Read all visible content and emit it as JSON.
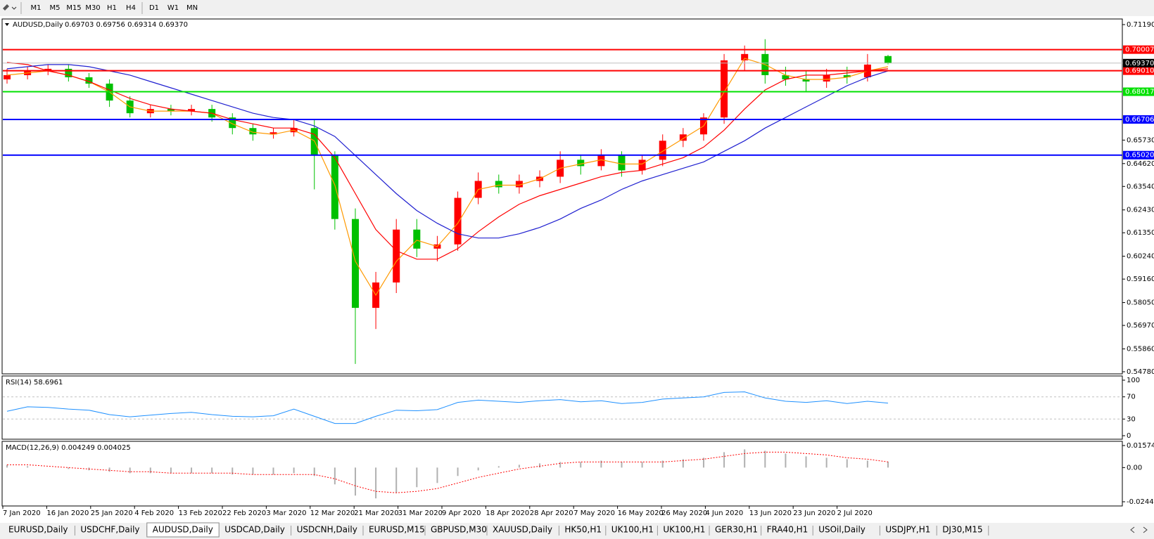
{
  "toolbar": {
    "timeframes": [
      "M1",
      "M5",
      "M15",
      "M30",
      "H1",
      "H4",
      "D1",
      "W1",
      "MN"
    ]
  },
  "chart_data": {
    "type": "candlestick",
    "title": "AUDUSD,Daily",
    "quote": "0.69703 0.69756 0.69314 0.69370",
    "bull_color": "#ff0000",
    "bear_color": "#00c000",
    "x_labels": [
      "7 Jan 2020",
      "16 Jan 2020",
      "25 Jan 2020",
      "4 Feb 2020",
      "13 Feb 2020",
      "22 Feb 2020",
      "3 Mar 2020",
      "12 Mar 2020",
      "21 Mar 2020",
      "31 Mar 2020",
      "9 Apr 2020",
      "18 Apr 2020",
      "28 Apr 2020",
      "7 May 2020",
      "16 May 2020",
      "26 May 2020",
      "4 Jun 2020",
      "13 Jun 2020",
      "23 Jun 2020",
      "2 Jul 2020"
    ],
    "open": [
      0.686,
      0.688,
      0.69,
      0.691,
      0.687,
      0.684,
      0.676,
      0.67,
      0.672,
      0.671,
      0.672,
      0.668,
      0.663,
      0.66,
      0.661,
      0.663,
      0.65,
      0.62,
      0.578,
      0.59,
      0.615,
      0.606,
      0.608,
      0.63,
      0.638,
      0.635,
      0.638,
      0.64,
      0.648,
      0.645,
      0.65,
      0.643,
      0.648,
      0.657,
      0.66,
      0.668,
      0.695,
      0.698,
      0.688,
      0.686,
      0.685,
      0.688,
      0.687,
      0.69703
    ],
    "high": [
      0.691,
      0.692,
      0.693,
      0.693,
      0.689,
      0.686,
      0.678,
      0.674,
      0.674,
      0.674,
      0.674,
      0.67,
      0.665,
      0.663,
      0.667,
      0.667,
      0.652,
      0.625,
      0.595,
      0.62,
      0.62,
      0.612,
      0.633,
      0.642,
      0.641,
      0.641,
      0.643,
      0.652,
      0.65,
      0.653,
      0.652,
      0.65,
      0.66,
      0.663,
      0.67,
      0.698,
      0.702,
      0.705,
      0.692,
      0.69,
      0.691,
      0.692,
      0.698,
      0.69756
    ],
    "low": [
      0.684,
      0.686,
      0.688,
      0.685,
      0.682,
      0.673,
      0.668,
      0.668,
      0.669,
      0.669,
      0.666,
      0.66,
      0.657,
      0.658,
      0.659,
      0.634,
      0.615,
      0.5515,
      0.568,
      0.585,
      0.602,
      0.6,
      0.605,
      0.627,
      0.632,
      0.632,
      0.635,
      0.637,
      0.641,
      0.643,
      0.64,
      0.641,
      0.645,
      0.654,
      0.657,
      0.665,
      0.69,
      0.684,
      0.683,
      0.68,
      0.682,
      0.684,
      0.685,
      0.69314
    ],
    "close": [
      0.688,
      0.69,
      0.691,
      0.687,
      0.684,
      0.676,
      0.67,
      0.672,
      0.671,
      0.672,
      0.668,
      0.663,
      0.66,
      0.661,
      0.663,
      0.65,
      0.62,
      0.578,
      0.59,
      0.615,
      0.606,
      0.608,
      0.63,
      0.638,
      0.635,
      0.638,
      0.64,
      0.648,
      0.645,
      0.65,
      0.643,
      0.648,
      0.657,
      0.66,
      0.668,
      0.695,
      0.698,
      0.688,
      0.686,
      0.685,
      0.688,
      0.687,
      0.693,
      0.6937
    ],
    "moving_averages": [
      {
        "color": "#ff9900",
        "values": [
          0.688,
          0.689,
          0.69,
          0.688,
          0.685,
          0.68,
          0.673,
          0.671,
          0.671,
          0.671,
          0.67,
          0.665,
          0.661,
          0.66,
          0.662,
          0.657,
          0.636,
          0.6,
          0.584,
          0.6,
          0.61,
          0.607,
          0.618,
          0.634,
          0.636,
          0.636,
          0.639,
          0.644,
          0.646,
          0.648,
          0.646,
          0.646,
          0.652,
          0.658,
          0.664,
          0.68,
          0.696,
          0.693,
          0.688,
          0.686,
          0.686,
          0.687,
          0.69,
          0.692
        ]
      },
      {
        "color": "#ff0000",
        "values": [
          0.694,
          0.693,
          0.69,
          0.688,
          0.685,
          0.681,
          0.677,
          0.674,
          0.672,
          0.671,
          0.67,
          0.667,
          0.665,
          0.663,
          0.663,
          0.66,
          0.649,
          0.632,
          0.615,
          0.605,
          0.601,
          0.601,
          0.606,
          0.614,
          0.621,
          0.627,
          0.631,
          0.634,
          0.637,
          0.64,
          0.642,
          0.643,
          0.646,
          0.649,
          0.654,
          0.662,
          0.672,
          0.681,
          0.686,
          0.688,
          0.688,
          0.689,
          0.69,
          0.691
        ]
      },
      {
        "color": "#2020d0",
        "values": [
          0.691,
          0.692,
          0.693,
          0.693,
          0.692,
          0.69,
          0.688,
          0.685,
          0.682,
          0.679,
          0.676,
          0.673,
          0.67,
          0.668,
          0.667,
          0.664,
          0.659,
          0.65,
          0.641,
          0.632,
          0.624,
          0.618,
          0.613,
          0.611,
          0.611,
          0.613,
          0.616,
          0.62,
          0.625,
          0.629,
          0.634,
          0.638,
          0.641,
          0.644,
          0.647,
          0.652,
          0.657,
          0.663,
          0.668,
          0.673,
          0.678,
          0.683,
          0.687,
          0.69
        ]
      }
    ],
    "ylim": [
      0.5478,
      0.7119
    ],
    "yticks": [
      {
        "value": 0.7119,
        "label": "0.71190"
      },
      {
        "value": 0.6573,
        "label": "0.65730"
      },
      {
        "value": 0.6462,
        "label": "0.64620"
      },
      {
        "value": 0.6354,
        "label": "0.63540"
      },
      {
        "value": 0.6243,
        "label": "0.62430"
      },
      {
        "value": 0.6135,
        "label": "0.61350"
      },
      {
        "value": 0.6024,
        "label": "0.60240"
      },
      {
        "value": 0.5916,
        "label": "0.59160"
      },
      {
        "value": 0.5805,
        "label": "0.58050"
      },
      {
        "value": 0.5697,
        "label": "0.56970"
      },
      {
        "value": 0.5586,
        "label": "0.55860"
      },
      {
        "value": 0.5478,
        "label": "0.54780"
      }
    ],
    "levels": [
      {
        "value": 0.70007,
        "label": "0.70007",
        "color": "#ff0000"
      },
      {
        "value": 0.6901,
        "label": "0.69010",
        "color": "#ff0000"
      },
      {
        "value": 0.68017,
        "label": "0.68017",
        "color": "#00e000"
      },
      {
        "value": 0.66706,
        "label": "0.66706",
        "color": "#0000ff"
      },
      {
        "value": 0.6502,
        "label": "0.65020",
        "color": "#0000ff"
      }
    ],
    "current_price": {
      "value": 0.6937,
      "label": "0.69370"
    }
  },
  "rsi": {
    "title": "RSI(14) 58.6961",
    "color": "#1e90ff",
    "ylim": [
      0,
      100
    ],
    "yticks": [
      0,
      30,
      70,
      100
    ],
    "levels": [
      30,
      70
    ],
    "values": [
      44,
      52,
      51,
      48,
      46,
      38,
      34,
      37,
      40,
      42,
      38,
      35,
      34,
      36,
      48,
      35,
      22,
      22,
      35,
      46,
      45,
      47,
      60,
      64,
      62,
      60,
      63,
      65,
      61,
      63,
      58,
      60,
      66,
      68,
      70,
      78,
      79,
      68,
      62,
      60,
      63,
      58,
      62,
      58.7
    ]
  },
  "macd": {
    "title": "MACD(12,26,9) 0.004249 0.004025",
    "ylim": [
      -0.024412,
      0.015741
    ],
    "yticks": [
      0.015741,
      {
        "value": 0,
        "label": "0.00"
      },
      -0.024412
    ],
    "histogram": [
      0.002,
      0.001,
      0.0,
      -0.001,
      -0.002,
      -0.003,
      -0.004,
      -0.004,
      -0.004,
      -0.004,
      -0.004,
      -0.005,
      -0.005,
      -0.005,
      -0.004,
      -0.006,
      -0.012,
      -0.02,
      -0.022,
      -0.018,
      -0.014,
      -0.011,
      -0.006,
      -0.002,
      0.001,
      0.002,
      0.003,
      0.004,
      0.004,
      0.005,
      0.004,
      0.004,
      0.005,
      0.006,
      0.007,
      0.011,
      0.013,
      0.012,
      0.01,
      0.008,
      0.007,
      0.006,
      0.005,
      0.004249
    ],
    "signal": [
      0.002,
      0.002,
      0.001,
      0.0,
      -0.001,
      -0.002,
      -0.003,
      -0.003,
      -0.004,
      -0.004,
      -0.004,
      -0.004,
      -0.005,
      -0.005,
      -0.005,
      -0.005,
      -0.008,
      -0.013,
      -0.017,
      -0.018,
      -0.017,
      -0.015,
      -0.011,
      -0.007,
      -0.004,
      -0.001,
      0.001,
      0.003,
      0.004,
      0.004,
      0.004,
      0.004,
      0.004,
      0.005,
      0.006,
      0.008,
      0.01,
      0.011,
      0.011,
      0.01,
      0.009,
      0.007,
      0.006,
      0.004025
    ],
    "histogram_color": "#b0b0b0",
    "signal_color": "#ff0000"
  },
  "tabs": [
    "EURUSD,Daily",
    "USDCHF,Daily",
    "AUDUSD,Daily",
    "USDCAD,Daily",
    "USDCNH,Daily",
    "EURUSD,M15",
    "GBPUSD,M30",
    "XAUUSD,Daily",
    "HK50,H1",
    "UK100,H1",
    "UK100,H1",
    "GER30,H1",
    "FRA40,H1",
    "USOil,Daily",
    "USDJPY,H1",
    "DJ30,M15"
  ],
  "active_tab": 2
}
